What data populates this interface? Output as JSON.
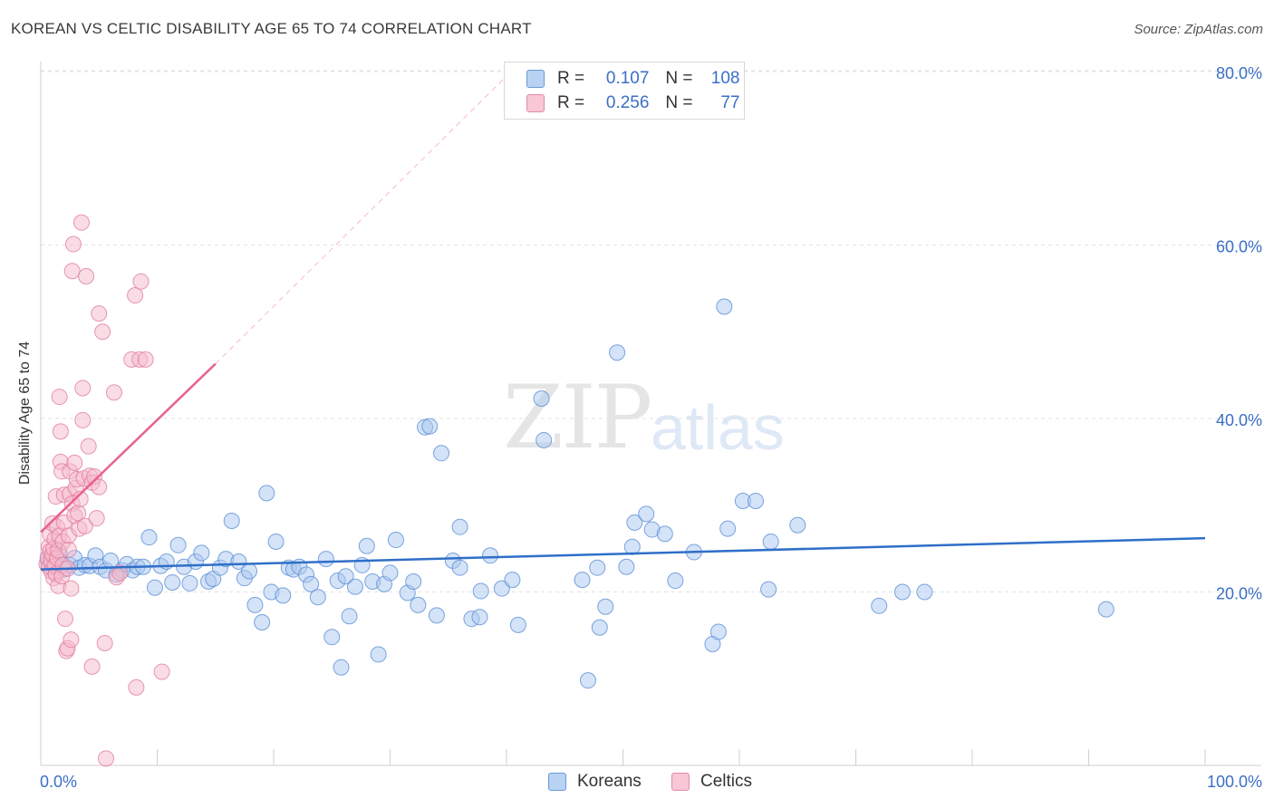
{
  "title": "KOREAN VS CELTIC DISABILITY AGE 65 TO 74 CORRELATION CHART",
  "source": "Source: ZipAtlas.com",
  "watermark": {
    "zip": "ZIP",
    "atlas": "atlas"
  },
  "legend": {
    "rows": [
      {
        "r_label": "R =",
        "r_value": "0.107",
        "n_label": "N =",
        "n_value": "108"
      },
      {
        "r_label": "R =",
        "r_value": "0.256",
        "n_label": "N =",
        "n_value": "77"
      }
    ]
  },
  "bottom_legend": [
    "Koreans",
    "Celtics"
  ],
  "colors": {
    "koreans_fill": "#a9c8ef",
    "koreans_stroke": "#5b8fd6",
    "koreans_line": "#2f6fc8",
    "celtics_fill": "#f6b9cb",
    "celtics_stroke": "#e07ea0",
    "celtics_line": "#e8628f",
    "axis_label": "#3b6fc6",
    "grid": "#e3e3e3"
  },
  "chart_data": {
    "type": "scatter",
    "title": "KOREAN VS CELTIC DISABILITY AGE 65 TO 74 CORRELATION CHART",
    "xlabel": "",
    "ylabel": "Disability Age 65 to 74",
    "xlim": [
      0,
      100
    ],
    "ylim": [
      0,
      80
    ],
    "x_ticks": [
      "0.0%",
      "100.0%"
    ],
    "y_ticks": [
      "20.0%",
      "40.0%",
      "60.0%",
      "80.0%"
    ],
    "y_tick_values": [
      20,
      40,
      60,
      80
    ],
    "grid": true,
    "legend_placement": "top-center",
    "series": [
      {
        "name": "Koreans",
        "R": 0.107,
        "N": 108,
        "trend": {
          "x": [
            0,
            100
          ],
          "y": [
            22.6,
            26.2
          ],
          "style": "solid"
        },
        "points": [
          [
            0.6,
            23.7
          ],
          [
            0.9,
            22.9
          ],
          [
            1.2,
            23.3
          ],
          [
            1.6,
            24.5
          ],
          [
            2.0,
            22.6
          ],
          [
            2.5,
            23.1
          ],
          [
            2.9,
            23.9
          ],
          [
            3.3,
            22.8
          ],
          [
            3.8,
            23.1
          ],
          [
            4.2,
            23.0
          ],
          [
            4.7,
            24.2
          ],
          [
            5.1,
            22.9
          ],
          [
            5.6,
            22.5
          ],
          [
            6.0,
            23.6
          ],
          [
            6.5,
            22.0
          ],
          [
            7.0,
            22.5
          ],
          [
            7.4,
            23.2
          ],
          [
            7.9,
            22.5
          ],
          [
            8.3,
            22.9
          ],
          [
            8.8,
            22.9
          ],
          [
            9.3,
            26.3
          ],
          [
            9.8,
            20.5
          ],
          [
            10.3,
            23.0
          ],
          [
            10.8,
            23.5
          ],
          [
            11.3,
            21.1
          ],
          [
            11.8,
            25.4
          ],
          [
            12.3,
            22.9
          ],
          [
            12.8,
            21.0
          ],
          [
            13.3,
            23.5
          ],
          [
            13.8,
            24.5
          ],
          [
            14.4,
            21.2
          ],
          [
            14.8,
            21.5
          ],
          [
            15.4,
            22.8
          ],
          [
            15.9,
            23.8
          ],
          [
            16.4,
            28.2
          ],
          [
            17.0,
            23.5
          ],
          [
            17.5,
            21.6
          ],
          [
            17.9,
            22.4
          ],
          [
            18.4,
            18.5
          ],
          [
            19.0,
            16.5
          ],
          [
            19.4,
            31.4
          ],
          [
            19.8,
            20.0
          ],
          [
            20.2,
            25.8
          ],
          [
            20.8,
            19.6
          ],
          [
            21.3,
            22.8
          ],
          [
            21.7,
            22.6
          ],
          [
            22.2,
            22.9
          ],
          [
            22.8,
            22.0
          ],
          [
            23.2,
            20.9
          ],
          [
            23.8,
            19.4
          ],
          [
            24.5,
            23.8
          ],
          [
            25.0,
            14.8
          ],
          [
            25.5,
            21.3
          ],
          [
            25.8,
            11.3
          ],
          [
            26.2,
            21.8
          ],
          [
            26.5,
            17.2
          ],
          [
            27.0,
            20.6
          ],
          [
            27.6,
            23.1
          ],
          [
            28.0,
            25.3
          ],
          [
            28.5,
            21.2
          ],
          [
            29.0,
            12.8
          ],
          [
            29.5,
            20.9
          ],
          [
            30.0,
            22.2
          ],
          [
            30.5,
            26.0
          ],
          [
            31.5,
            19.9
          ],
          [
            32.0,
            21.2
          ],
          [
            32.4,
            18.5
          ],
          [
            33.0,
            39.0
          ],
          [
            33.4,
            39.1
          ],
          [
            34.0,
            17.3
          ],
          [
            34.4,
            36.0
          ],
          [
            35.4,
            23.6
          ],
          [
            36.0,
            22.8
          ],
          [
            36.0,
            27.5
          ],
          [
            37.0,
            16.9
          ],
          [
            37.7,
            17.1
          ],
          [
            37.8,
            20.1
          ],
          [
            38.6,
            24.2
          ],
          [
            39.6,
            20.4
          ],
          [
            40.5,
            21.4
          ],
          [
            41.0,
            16.2
          ],
          [
            43.0,
            42.3
          ],
          [
            43.2,
            37.5
          ],
          [
            46.5,
            21.4
          ],
          [
            47.0,
            9.8
          ],
          [
            47.8,
            22.8
          ],
          [
            48.0,
            15.9
          ],
          [
            48.5,
            18.3
          ],
          [
            49.5,
            47.6
          ],
          [
            50.3,
            22.9
          ],
          [
            50.8,
            25.2
          ],
          [
            51.0,
            28.0
          ],
          [
            52.0,
            29.0
          ],
          [
            52.5,
            27.2
          ],
          [
            53.6,
            26.7
          ],
          [
            54.5,
            21.3
          ],
          [
            56.1,
            24.6
          ],
          [
            57.7,
            14.0
          ],
          [
            58.2,
            15.4
          ],
          [
            58.7,
            52.9
          ],
          [
            59.0,
            27.3
          ],
          [
            60.3,
            30.5
          ],
          [
            61.4,
            30.5
          ],
          [
            62.5,
            20.3
          ],
          [
            62.7,
            25.8
          ],
          [
            65.0,
            27.7
          ],
          [
            72.0,
            18.4
          ],
          [
            74.0,
            20.0
          ],
          [
            75.9,
            20.0
          ],
          [
            91.5,
            18.0
          ]
        ]
      },
      {
        "name": "Celtics",
        "R": 0.256,
        "N": 77,
        "trend": {
          "x": [
            0,
            15
          ],
          "y": [
            26.9,
            46.3
          ],
          "style": "solid",
          "extension": {
            "x": [
              15,
              40.4
            ],
            "y": [
              46.3,
              80
            ],
            "style": "dashed"
          }
        },
        "points": [
          [
            0.5,
            23.2
          ],
          [
            0.6,
            24.0
          ],
          [
            0.7,
            22.9
          ],
          [
            0.7,
            25.2
          ],
          [
            0.8,
            24.7
          ],
          [
            0.8,
            26.6
          ],
          [
            0.9,
            22.4
          ],
          [
            0.9,
            23.6
          ],
          [
            1.0,
            27.9
          ],
          [
            1.0,
            24.3
          ],
          [
            1.1,
            21.6
          ],
          [
            1.1,
            25.0
          ],
          [
            1.2,
            23.0
          ],
          [
            1.2,
            26.1
          ],
          [
            1.3,
            22.1
          ],
          [
            1.3,
            31.0
          ],
          [
            1.4,
            23.9
          ],
          [
            1.4,
            27.5
          ],
          [
            1.5,
            24.8
          ],
          [
            1.5,
            20.7
          ],
          [
            1.6,
            26.5
          ],
          [
            1.6,
            42.5
          ],
          [
            1.7,
            35.0
          ],
          [
            1.7,
            38.5
          ],
          [
            1.8,
            21.8
          ],
          [
            1.8,
            33.9
          ],
          [
            1.9,
            23.1
          ],
          [
            1.9,
            25.8
          ],
          [
            2.0,
            28.0
          ],
          [
            2.0,
            31.2
          ],
          [
            2.1,
            16.9
          ],
          [
            2.2,
            13.2
          ],
          [
            2.3,
            13.5
          ],
          [
            2.3,
            22.7
          ],
          [
            2.4,
            24.9
          ],
          [
            2.4,
            26.5
          ],
          [
            2.5,
            31.3
          ],
          [
            2.5,
            33.9
          ],
          [
            2.6,
            20.4
          ],
          [
            2.6,
            14.5
          ],
          [
            2.7,
            57.0
          ],
          [
            2.7,
            30.2
          ],
          [
            2.8,
            60.1
          ],
          [
            2.9,
            34.9
          ],
          [
            2.9,
            28.8
          ],
          [
            3.0,
            32.0
          ],
          [
            3.1,
            33.0
          ],
          [
            3.2,
            29.1
          ],
          [
            3.3,
            27.3
          ],
          [
            3.4,
            30.7
          ],
          [
            3.5,
            62.6
          ],
          [
            3.6,
            43.5
          ],
          [
            3.6,
            39.8
          ],
          [
            3.7,
            33.1
          ],
          [
            3.8,
            27.6
          ],
          [
            3.9,
            56.4
          ],
          [
            4.1,
            36.8
          ],
          [
            4.2,
            33.4
          ],
          [
            4.4,
            11.4
          ],
          [
            4.4,
            32.6
          ],
          [
            4.6,
            33.3
          ],
          [
            4.8,
            28.5
          ],
          [
            5.0,
            32.1
          ],
          [
            5.0,
            52.1
          ],
          [
            5.3,
            50.0
          ],
          [
            5.5,
            14.1
          ],
          [
            5.6,
            0.8
          ],
          [
            6.3,
            43.0
          ],
          [
            6.5,
            21.7
          ],
          [
            6.8,
            22.2
          ],
          [
            7.8,
            46.8
          ],
          [
            8.1,
            54.2
          ],
          [
            8.2,
            9.0
          ],
          [
            8.5,
            46.8
          ],
          [
            8.6,
            55.8
          ],
          [
            9.0,
            46.8
          ],
          [
            10.4,
            10.8
          ]
        ]
      }
    ]
  }
}
